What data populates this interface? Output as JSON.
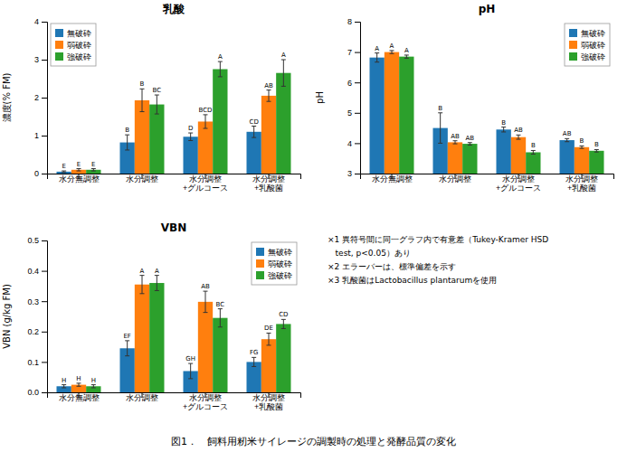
{
  "title": "図1．　飼料用籾米サイレージの調製時の処理と発酵品質の変化",
  "annotations": [
    "×1 異符号間に同一グラフ内で有意差（Tukey-Kramer HSD",
    "   test, p<0.05）あり",
    "×2 エラーバーは、標準偏差を示す",
    "×3 乳酸菌はLactobacillus plantarumを使用"
  ],
  "chart_data": [
    {
      "type": "bar",
      "title": "乳酸",
      "ylabel": "濃度(% FM)",
      "categories": [
        "水分無調整",
        "水分調整",
        "水分調整\n+グルコース",
        "水分調整\n+乳酸菌"
      ],
      "series": [
        {
          "name": "無破砕",
          "values": [
            0.05,
            0.82,
            0.97,
            1.1
          ],
          "errors": [
            0.02,
            0.2,
            0.1,
            0.15
          ],
          "annotations": [
            "E",
            "B",
            "D",
            "CD"
          ]
        },
        {
          "name": "弱破砕",
          "values": [
            0.1,
            1.93,
            1.37,
            2.05
          ],
          "errors": [
            0.03,
            0.3,
            0.18,
            0.15
          ],
          "annotations": [
            "E",
            "B",
            "BCD",
            "AB"
          ]
        },
        {
          "name": "強破砕",
          "values": [
            0.1,
            1.82,
            2.75,
            2.65
          ],
          "errors": [
            0.03,
            0.25,
            0.2,
            0.35
          ],
          "annotations": [
            "E",
            "BC",
            "A",
            "A"
          ]
        }
      ],
      "ylim": [
        0,
        4
      ],
      "yticks": [
        0,
        1,
        2,
        3,
        4
      ],
      "legend": "upper left"
    },
    {
      "type": "bar",
      "title": "pH",
      "ylabel": "pH",
      "categories": [
        "水分無調整",
        "水分調整",
        "水分調整\n+グルコース",
        "水分調整\n+乳酸菌"
      ],
      "series": [
        {
          "name": "無破砕",
          "values": [
            6.82,
            4.5,
            4.45,
            4.1
          ],
          "errors": [
            0.15,
            0.5,
            0.08,
            0.05
          ],
          "annotations": [
            "A",
            "B",
            "B",
            "AB"
          ]
        },
        {
          "name": "弱破砕",
          "values": [
            7.0,
            4.03,
            4.2,
            3.87
          ],
          "errors": [
            0.05,
            0.05,
            0.07,
            0.04
          ],
          "annotations": [
            "A",
            "AB",
            "AB",
            "B"
          ]
        },
        {
          "name": "強破砕",
          "values": [
            6.85,
            3.98,
            3.7,
            3.75
          ],
          "errors": [
            0.05,
            0.04,
            0.06,
            0.04
          ],
          "annotations": [
            "A",
            "AB",
            "B",
            "B"
          ]
        }
      ],
      "ylim": [
        3,
        8
      ],
      "yticks": [
        3,
        4,
        5,
        6,
        7,
        8
      ],
      "legend": "upper right"
    },
    {
      "type": "bar",
      "title": "VBN",
      "ylabel": "VBN (g/kg FM)",
      "categories": [
        "水分無調整",
        "水分調整",
        "水分調整\n+グルコース",
        "水分調整\n+乳酸菌"
      ],
      "series": [
        {
          "name": "無破砕",
          "values": [
            0.02,
            0.145,
            0.07,
            0.1
          ],
          "errors": [
            0.005,
            0.025,
            0.025,
            0.015
          ],
          "annotations": [
            "H",
            "EF",
            "GH",
            "FG"
          ]
        },
        {
          "name": "弱破砕",
          "values": [
            0.025,
            0.355,
            0.298,
            0.175
          ],
          "errors": [
            0.005,
            0.03,
            0.035,
            0.02
          ],
          "annotations": [
            "H",
            "A",
            "AB",
            "DE"
          ]
        },
        {
          "name": "強破砕",
          "values": [
            0.02,
            0.36,
            0.245,
            0.225
          ],
          "errors": [
            0.005,
            0.025,
            0.03,
            0.015
          ],
          "annotations": [
            "H",
            "A",
            "BC",
            "CD"
          ]
        }
      ],
      "ylim": [
        0,
        0.5
      ],
      "yticks": [
        {
          "value": 0,
          "label": "0.0"
        },
        0.1,
        0.2,
        0.3,
        0.4,
        0.5
      ],
      "legend": "upper right"
    }
  ]
}
